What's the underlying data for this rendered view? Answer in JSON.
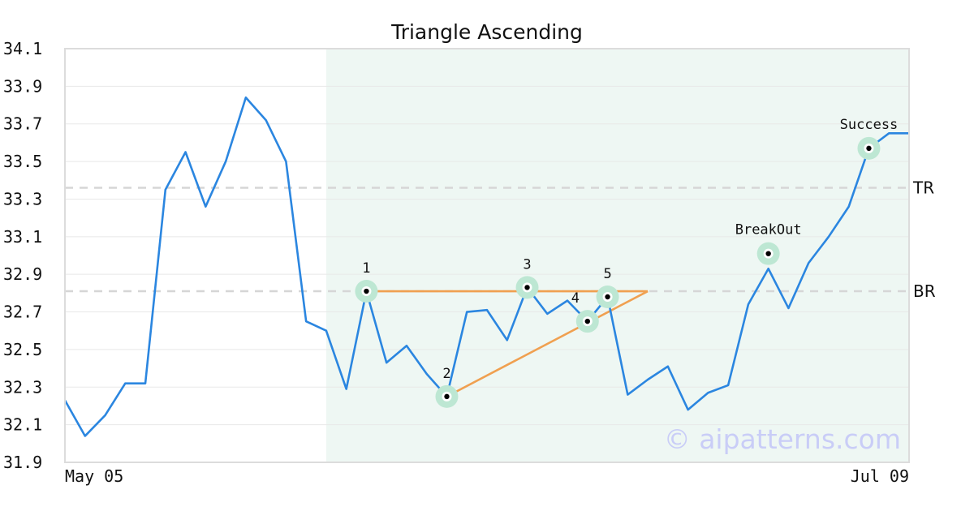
{
  "chart_data": {
    "type": "line",
    "title": "Triangle Ascending",
    "x_tick_labels": [
      "May 05",
      "Jul 09"
    ],
    "ylim": [
      31.9,
      34.1
    ],
    "y_ticks": [
      31.9,
      32.1,
      32.3,
      32.5,
      32.7,
      32.9,
      33.1,
      33.3,
      33.5,
      33.7,
      33.9,
      34.1
    ],
    "grid": true,
    "series": [
      {
        "color": "#2b86e0",
        "values": [
          32.23,
          32.04,
          32.15,
          32.32,
          32.32,
          33.35,
          33.55,
          33.26,
          33.5,
          33.84,
          33.72,
          33.5,
          32.65,
          32.6,
          32.29,
          32.81,
          32.43,
          32.52,
          32.37,
          32.25,
          32.7,
          32.71,
          32.55,
          32.83,
          32.69,
          32.76,
          32.65,
          32.78,
          32.26,
          32.34,
          32.41,
          32.18,
          32.27,
          32.31,
          32.74,
          32.93,
          32.72,
          32.96,
          33.1,
          33.26,
          33.57,
          33.65,
          33.65
        ]
      }
    ],
    "highlight_region": {
      "x_start_index": 13,
      "x_end_index": 42,
      "color": "#eef7f3"
    },
    "reference_lines": [
      {
        "label": "TR",
        "value": 33.36
      },
      {
        "label": "BR",
        "value": 32.81
      }
    ],
    "pattern_lines": [
      {
        "color": "#f0a050",
        "from": {
          "x": 15,
          "y": 32.81
        },
        "to": {
          "x": 29,
          "y": 32.81
        }
      },
      {
        "color": "#f0a050",
        "from": {
          "x": 19,
          "y": 32.25
        },
        "to": {
          "x": 29,
          "y": 32.81
        }
      }
    ],
    "markers": [
      {
        "label": "1",
        "x": 15,
        "y": 32.81,
        "label_pos": "above"
      },
      {
        "label": "2",
        "x": 19,
        "y": 32.25,
        "label_pos": "above"
      },
      {
        "label": "3",
        "x": 23,
        "y": 32.83,
        "label_pos": "above"
      },
      {
        "label": "4",
        "x": 26,
        "y": 32.65,
        "label_pos": "above-left"
      },
      {
        "label": "5",
        "x": 27,
        "y": 32.78,
        "label_pos": "above"
      },
      {
        "label": "BreakOut",
        "x": 35,
        "y": 33.01,
        "label_pos": "above"
      },
      {
        "label": "Success",
        "x": 40,
        "y": 33.57,
        "label_pos": "above"
      }
    ],
    "watermark": "© aipatterns.com"
  }
}
